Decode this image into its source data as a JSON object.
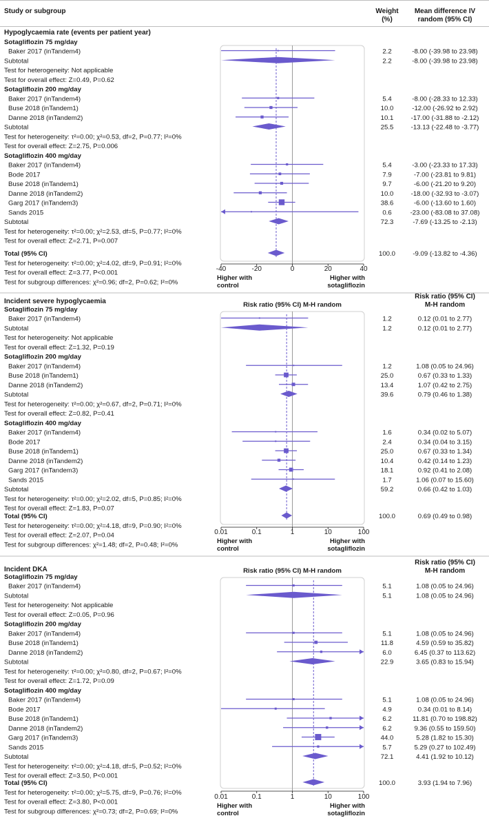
{
  "header": {
    "study_col": "Study or subgroup",
    "weight_col_line1": "Weight",
    "weight_col_line2": "(%)",
    "md_col_line1": "Mean difference IV",
    "md_col_line2": "random (95% CI)"
  },
  "colors": {
    "accent": "#6a5acd",
    "panel_border": "#cfcfcf",
    "divider": "#bdbdbd",
    "zero_line": "#9a9a9a"
  },
  "chart_data": [
    {
      "type": "forest",
      "section_title": "Hypoglycaemia rate (events per patient year)",
      "plot_title_line1": "Mean difference IV",
      "plot_title_line2": "random (95% CI)",
      "estimate_header_line1": "Mean difference IV",
      "estimate_header_line2": "random (95% CI)",
      "scale": "linear",
      "xlim": [
        -40,
        40
      ],
      "ticks": [
        -40,
        -20,
        0,
        20,
        40
      ],
      "tick_labels": [
        "-40",
        "-20",
        "0",
        "20",
        "40"
      ],
      "null_value": 0,
      "label_left": [
        "Higher with",
        "control"
      ],
      "label_right": [
        "Higher with",
        "sotagliflozin"
      ],
      "groups": [
        {
          "name": "Sotagliflozin 75 mg/day",
          "studies": [
            {
              "name": "Baker 2017 (inTandem4)",
              "weight": "2.2",
              "estimate": -8.0,
              "lower": -39.98,
              "upper": 23.98,
              "ci_text": "-8.00 (-39.98 to 23.98)"
            }
          ],
          "subtotal": {
            "label": "Subtotal",
            "weight": "2.2",
            "estimate": -8.0,
            "lower": -39.98,
            "upper": 23.98,
            "ci_text": "-8.00 (-39.98 to 23.98)"
          },
          "heterogeneity": "Test for heterogeneity: Not applicable",
          "overall": "Test for overall effect: Z=0.49, P=0.62"
        },
        {
          "name": "Sotagliflozin 200 mg/day",
          "studies": [
            {
              "name": "Baker 2017 (inTandem4)",
              "weight": "5.4",
              "estimate": -8.0,
              "lower": -28.33,
              "upper": 12.33,
              "ci_text": "-8.00 (-28.33 to 12.33)"
            },
            {
              "name": "Buse 2018 (inTandem1)",
              "weight": "10.0",
              "estimate": -12.0,
              "lower": -26.92,
              "upper": 2.92,
              "ci_text": "-12.00 (-26.92 to 2.92)"
            },
            {
              "name": "Danne 2018 (inTandem2)",
              "weight": "10.1",
              "estimate": -17.0,
              "lower": -31.88,
              "upper": -2.12,
              "ci_text": "-17.00 (-31.88 to -2.12)"
            }
          ],
          "subtotal": {
            "label": "Subtotal",
            "weight": "25.5",
            "estimate": -13.13,
            "lower": -22.48,
            "upper": -3.77,
            "ci_text": "-13.13 (-22.48 to -3.77)"
          },
          "heterogeneity": "Test for heterogeneity: τ²=0.00; χ²=0.53, df=2, P=0.77; I²=0%",
          "overall": "Test for overall effect: Z=2.75, P=0.006"
        },
        {
          "name": "Sotagliflozin 400 mg/day",
          "studies": [
            {
              "name": "Baker 2017 (inTandem4)",
              "weight": "5.4",
              "estimate": -3.0,
              "lower": -23.33,
              "upper": 17.33,
              "ci_text": "-3.00 (-23.33 to 17.33)"
            },
            {
              "name": "Bode 2017",
              "weight": "7.9",
              "estimate": -7.0,
              "lower": -23.81,
              "upper": 9.81,
              "ci_text": "-7.00 (-23.81 to 9.81)"
            },
            {
              "name": "Buse 2018 (inTandem1)",
              "weight": "9.7",
              "estimate": -6.0,
              "lower": -21.2,
              "upper": 9.2,
              "ci_text": "-6.00 (-21.20 to 9.20)"
            },
            {
              "name": "Danne 2018 (inTandem2)",
              "weight": "10.0",
              "estimate": -18.0,
              "lower": -32.93,
              "upper": -3.07,
              "ci_text": "-18.00 (-32.93 to -3.07)"
            },
            {
              "name": "Garg 2017 (inTandem3)",
              "weight": "38.6",
              "estimate": -6.0,
              "lower": -13.6,
              "upper": 1.6,
              "ci_text": "-6.00 (-13.60 to 1.60)"
            },
            {
              "name": "Sands 2015",
              "weight": "0.6",
              "estimate": -23.0,
              "lower": -83.08,
              "upper": 37.08,
              "ci_text": "-23.00 (-83.08 to 37.08)"
            }
          ],
          "subtotal": {
            "label": "Subtotal",
            "weight": "72.3",
            "estimate": -7.69,
            "lower": -13.25,
            "upper": -2.13,
            "ci_text": "-7.69 (-13.25 to -2.13)"
          },
          "heterogeneity": "Test for heterogeneity: τ²=0.00; χ²=2.53, df=5, P=0.77; I²=0%",
          "overall": "Test for overall effect: Z=2.71, P=0.007"
        }
      ],
      "total": {
        "label": "Total (95% CI)",
        "weight": "100.0",
        "estimate": -9.09,
        "lower": -13.82,
        "upper": -4.36,
        "ci_text": "-9.09 (-13.82 to -4.36)"
      },
      "total_heterogeneity": "Test for heterogeneity: τ²=0.00; χ²=4.02, df=9, P=0.91; I²=0%",
      "total_overall": "Test for overall effect: Z=3.77, P<0.001",
      "subgroup_diff": "Test for subgroup differences: χ²=0.96; df=2, P=0.62; I²=0%"
    },
    {
      "type": "forest",
      "section_title": "Incident severe hypoglycaemia",
      "plot_title_line1": "Risk ratio (95% CI) M-H random",
      "plot_title_line2": "",
      "estimate_header_line1": "Risk ratio (95% CI)",
      "estimate_header_line2": "M-H random",
      "scale": "log",
      "xlim": [
        0.01,
        100
      ],
      "ticks": [
        0.01,
        0.1,
        1,
        10,
        100
      ],
      "tick_labels": [
        "0.01",
        "0.1",
        "1",
        "10",
        "100"
      ],
      "null_value": 1,
      "label_left": [
        "Higher with",
        "control"
      ],
      "label_right": [
        "Higher with",
        "sotagliflozin"
      ],
      "groups": [
        {
          "name": "Sotagliflozin 75 mg/day",
          "studies": [
            {
              "name": "Baker 2017 (inTandem4)",
              "weight": "1.2",
              "estimate": 0.12,
              "lower": 0.01,
              "upper": 2.77,
              "ci_text": "0.12 (0.01 to 2.77)"
            }
          ],
          "subtotal": {
            "label": "Subtotal",
            "weight": "1.2",
            "estimate": 0.12,
            "lower": 0.01,
            "upper": 2.77,
            "ci_text": "0.12 (0.01 to 2.77)"
          },
          "heterogeneity": "Test for heterogeneity: Not applicable",
          "overall": "Test for overall effect: Z=1.32, P=0.19"
        },
        {
          "name": "Sotagliflozin 200 mg/day",
          "studies": [
            {
              "name": "Baker 2017 (inTandem4)",
              "weight": "1.2",
              "estimate": 1.08,
              "lower": 0.05,
              "upper": 24.96,
              "ci_text": "1.08 (0.05 to 24.96)"
            },
            {
              "name": "Buse 2018 (inTandem1)",
              "weight": "25.0",
              "estimate": 0.67,
              "lower": 0.33,
              "upper": 1.33,
              "ci_text": "0.67 (0.33 to 1.33)"
            },
            {
              "name": "Danne 2018 (inTandem2)",
              "weight": "13.4",
              "estimate": 1.07,
              "lower": 0.42,
              "upper": 2.75,
              "ci_text": "1.07 (0.42 to 2.75)"
            }
          ],
          "subtotal": {
            "label": "Subtotal",
            "weight": "39.6",
            "estimate": 0.79,
            "lower": 0.46,
            "upper": 1.38,
            "ci_text": "0.79 (0.46 to 1.38)"
          },
          "heterogeneity": "Test for heterogeneity: τ²=0.00; χ²=0.67, df=2, P=0.71; I²=0%",
          "overall": "Test for overall effect: Z=0.82, P=0.41"
        },
        {
          "name": "Sotagliflozin 400 mg/day",
          "studies": [
            {
              "name": "Baker 2017 (inTandem4)",
              "weight": "1.6",
              "estimate": 0.34,
              "lower": 0.02,
              "upper": 5.07,
              "ci_text": "0.34 (0.02 to 5.07)"
            },
            {
              "name": "Bode 2017",
              "weight": "2.4",
              "estimate": 0.34,
              "lower": 0.04,
              "upper": 3.15,
              "ci_text": "0.34 (0.04 to 3.15)"
            },
            {
              "name": "Buse 2018 (inTandem1)",
              "weight": "25.0",
              "estimate": 0.67,
              "lower": 0.33,
              "upper": 1.34,
              "ci_text": "0.67 (0.33 to 1.34)"
            },
            {
              "name": "Danne 2018 (inTandem2)",
              "weight": "10.4",
              "estimate": 0.42,
              "lower": 0.14,
              "upper": 1.23,
              "ci_text": "0.42 (0.14 to 1.23)"
            },
            {
              "name": "Garg 2017 (inTandem3)",
              "weight": "18.1",
              "estimate": 0.92,
              "lower": 0.41,
              "upper": 2.08,
              "ci_text": "0.92 (0.41 to 2.08)"
            },
            {
              "name": "Sands 2015",
              "weight": "1.7",
              "estimate": 1.06,
              "lower": 0.07,
              "upper": 15.6,
              "ci_text": "1.06 (0.07 to 15.60)"
            }
          ],
          "subtotal": {
            "label": "Subtotal",
            "weight": "59.2",
            "estimate": 0.66,
            "lower": 0.42,
            "upper": 1.03,
            "ci_text": "0.66 (0.42 to 1.03)"
          },
          "heterogeneity": "Test for heterogeneity: τ²=0.00; χ²=2.02, df=5, P=0.85; I²=0%",
          "overall": "Test for overall effect: Z=1.83, P=0.07"
        }
      ],
      "total": {
        "label": "Total (95% CI)",
        "weight": "100.0",
        "estimate": 0.69,
        "lower": 0.49,
        "upper": 0.98,
        "ci_text": "0.69 (0.49 to 0.98)"
      },
      "total_heterogeneity": "Test for heterogeneity: τ²=0.00; χ²=4.18, df=9, P=0.90; I²=0%",
      "total_overall": "Test for overall effect: Z=2.07, P=0.04",
      "subgroup_diff": "Test for subgroup differences: χ²=1.48; df=2, P=0.48; I²=0%"
    },
    {
      "type": "forest",
      "section_title": "Incident DKA",
      "plot_title_line1": "Risk ratio (95% CI) M-H random",
      "plot_title_line2": "",
      "estimate_header_line1": "Risk ratio (95% CI)",
      "estimate_header_line2": "M-H random",
      "scale": "log",
      "xlim": [
        0.01,
        100
      ],
      "ticks": [
        0.01,
        0.1,
        1,
        10,
        100
      ],
      "tick_labels": [
        "0.01",
        "0.1",
        "1",
        "10",
        "100"
      ],
      "null_value": 1,
      "label_left": [
        "Higher with",
        "control"
      ],
      "label_right": [
        "Higher with",
        "sotagliflozin"
      ],
      "groups": [
        {
          "name": "Sotagliflozin 75 mg/day",
          "studies": [
            {
              "name": "Baker 2017 (inTandem4)",
              "weight": "5.1",
              "estimate": 1.08,
              "lower": 0.05,
              "upper": 24.96,
              "ci_text": "1.08 (0.05 to 24.96)"
            }
          ],
          "subtotal": {
            "label": "Subtotal",
            "weight": "5.1",
            "estimate": 1.08,
            "lower": 0.05,
            "upper": 24.96,
            "ci_text": "1.08 (0.05 to 24.96)"
          },
          "heterogeneity": "Test for heterogeneity: Not applicable",
          "overall": "Test for overall effect: Z=0.05, P=0.96"
        },
        {
          "name": "Sotagliflozin 200 mg/day",
          "studies": [
            {
              "name": "Baker 2017 (inTandem4)",
              "weight": "5.1",
              "estimate": 1.08,
              "lower": 0.05,
              "upper": 24.96,
              "ci_text": "1.08 (0.05 to 24.96)"
            },
            {
              "name": "Buse 2018 (inTandem1)",
              "weight": "11.8",
              "estimate": 4.59,
              "lower": 0.59,
              "upper": 35.82,
              "ci_text": "4.59 (0.59 to 35.82)"
            },
            {
              "name": "Danne 2018 (inTandem2)",
              "weight": "6.0",
              "estimate": 6.45,
              "lower": 0.37,
              "upper": 113.62,
              "ci_text": "6.45 (0.37 to 113.62)"
            }
          ],
          "subtotal": {
            "label": "Subtotal",
            "weight": "22.9",
            "estimate": 3.65,
            "lower": 0.83,
            "upper": 15.94,
            "ci_text": "3.65 (0.83 to 15.94)"
          },
          "heterogeneity": "Test for heterogeneity: τ²=0.00; χ²=0.80, df=2, P=0.67; I²=0%",
          "overall": "Test for overall effect: Z=1.72, P=0.09"
        },
        {
          "name": "Sotagliflozin 400 mg/day",
          "studies": [
            {
              "name": "Baker 2017 (inTandem4)",
              "weight": "5.1",
              "estimate": 1.08,
              "lower": 0.05,
              "upper": 24.96,
              "ci_text": "1.08 (0.05 to 24.96)"
            },
            {
              "name": "Bode 2017",
              "weight": "4.9",
              "estimate": 0.34,
              "lower": 0.01,
              "upper": 8.14,
              "ci_text": "0.34 (0.01 to 8.14)"
            },
            {
              "name": "Buse 2018 (inTandem1)",
              "weight": "6.2",
              "estimate": 11.81,
              "lower": 0.7,
              "upper": 198.82,
              "ci_text": "11.81 (0.70 to 198.82)"
            },
            {
              "name": "Danne 2018 (inTandem2)",
              "weight": "6.2",
              "estimate": 9.36,
              "lower": 0.55,
              "upper": 159.5,
              "ci_text": "9.36 (0.55 to 159.50)"
            },
            {
              "name": "Garg 2017 (inTandem3)",
              "weight": "44.0",
              "estimate": 5.28,
              "lower": 1.82,
              "upper": 15.3,
              "ci_text": "5.28 (1.82 to 15.30)"
            },
            {
              "name": "Sands 2015",
              "weight": "5.7",
              "estimate": 5.29,
              "lower": 0.27,
              "upper": 102.49,
              "ci_text": "5.29 (0.27 to 102.49)"
            }
          ],
          "subtotal": {
            "label": "Subtotal",
            "weight": "72.1",
            "estimate": 4.41,
            "lower": 1.92,
            "upper": 10.12,
            "ci_text": "4.41 (1.92 to 10.12)"
          },
          "heterogeneity": "Test for heterogeneity: τ²=0.00; χ²=4.18, df=5, P=0.52; I²=0%",
          "overall": "Test for overall effect: Z=3.50, P<0.001"
        }
      ],
      "total": {
        "label": "Total (95% CI)",
        "weight": "100.0",
        "estimate": 3.93,
        "lower": 1.94,
        "upper": 7.96,
        "ci_text": "3.93 (1.94 to 7.96)"
      },
      "total_heterogeneity": "Test for heterogeneity: τ²=0.00; χ²=5.75, df=9, P=0.76; I²=0%",
      "total_overall": "Test for overall effect: Z=3.80, P<0.001",
      "subgroup_diff": "Test for subgroup differences: χ²=0.73; df=2, P=0.69; I²=0%"
    }
  ]
}
